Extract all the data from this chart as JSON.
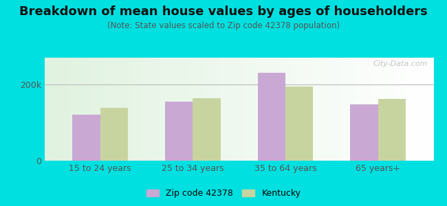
{
  "title": "Breakdown of mean house values by ages of householders",
  "subtitle": "(Note: State values scaled to Zip code 42378 population)",
  "categories": [
    "15 to 24 years",
    "25 to 34 years",
    "35 to 64 years",
    "65 years+"
  ],
  "zip_values": [
    120000,
    155000,
    230000,
    148000
  ],
  "state_values": [
    138000,
    163000,
    195000,
    162000
  ],
  "zip_color": "#c9a8d4",
  "state_color": "#c8d4a0",
  "background_outer": "#00e0e0",
  "ylabel_ticks": [
    0,
    200000
  ],
  "ytick_labels": [
    "0",
    "200k"
  ],
  "ylim": [
    0,
    270000
  ],
  "legend_zip_label": "Zip code 42378",
  "legend_state_label": "Kentucky",
  "title_fontsize": 13,
  "subtitle_fontsize": 8.5,
  "tick_fontsize": 9,
  "legend_fontsize": 9,
  "bar_width": 0.3,
  "grid_color": "#bbbbbb",
  "watermark": "City-Data.com"
}
